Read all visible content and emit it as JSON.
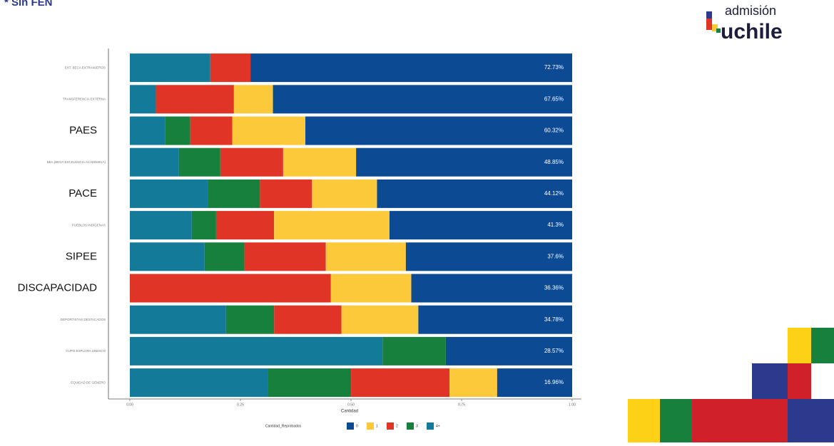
{
  "header": {
    "note": "* Sin FEN"
  },
  "logo": {
    "line1": "admisión",
    "line2": "uchile"
  },
  "chart_data": {
    "type": "stacked-barh",
    "categories": [
      "EXT. BECA EXTRANJEROS",
      "TRANSFERENCIA EXTERNA",
      "PAES",
      "BEA (BECA EXCELENCIA ACADÉMICA)",
      "PACE",
      "PUEBLOS INDÍGENAS",
      "SIPEE",
      "DISCAPACIDAD",
      "DEPORTISTAS DESTACADOS",
      "CUPO EXPLORA UNESCO",
      "EQUIDAD DE GÉNERO"
    ],
    "x_label": "Cantidad",
    "legend_title": "Cantidad_Reprobados",
    "xlim": [
      0,
      1
    ],
    "xticks": [
      {
        "value": 0,
        "label": "0.00"
      },
      {
        "value": 0.25,
        "label": "0.25"
      },
      {
        "value": 0.5,
        "label": "0.50"
      },
      {
        "value": 0.75,
        "label": "0.75"
      },
      {
        "value": 1,
        "label": "1.00"
      }
    ],
    "series": [
      {
        "name": "0",
        "color": "#0d4a94",
        "values": [
          0.7273,
          0.6765,
          0.6032,
          0.4885,
          0.4412,
          0.413,
          0.376,
          0.3636,
          0.3478,
          0.2857,
          0.1696
        ],
        "value_labels": [
          "72.73%",
          "67.65%",
          "60.32%",
          "48.85%",
          "44.12%",
          "41.3%",
          "37.6%",
          "36.36%",
          "34.78%",
          "28.57%",
          "16.96%"
        ]
      },
      {
        "name": "1",
        "color": "#fcc93a",
        "values": [
          0,
          0.0882,
          0.1651,
          0.1649,
          0.1471,
          0.261,
          0.181,
          0.1818,
          0.1739,
          0,
          0.1077
        ]
      },
      {
        "name": "2",
        "color": "#e03426",
        "values": [
          0.0909,
          0.1765,
          0.0952,
          0.142,
          0.1176,
          0.131,
          0.184,
          0.4545,
          0.1522,
          0,
          0.2226
        ]
      },
      {
        "name": "3",
        "color": "#17803d",
        "values": [
          0,
          0,
          0.0571,
          0.0935,
          0.1176,
          0.055,
          0.09,
          0,
          0.1087,
          0.1429,
          0.1887
        ]
      },
      {
        "name": "4+",
        "color": "#137a9a",
        "values": [
          0.1818,
          0.0588,
          0.0794,
          0.1111,
          0.1765,
          0.14,
          0.169,
          0,
          0.2174,
          0.5714,
          0.3114
        ]
      }
    ]
  }
}
